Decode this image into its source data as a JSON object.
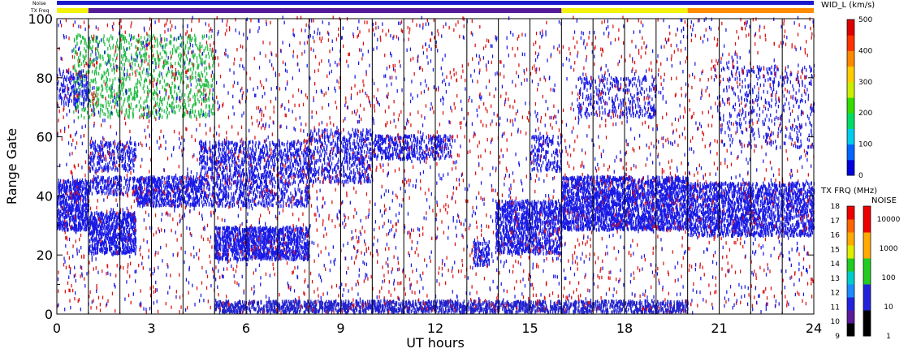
{
  "chart_data": {
    "type": "heatmap",
    "xlabel": "UT hours",
    "ylabel": "Range Gate",
    "xlim": [
      0,
      24
    ],
    "ylim": [
      0,
      100
    ],
    "xticks": [
      "0",
      "3",
      "6",
      "9",
      "12",
      "15",
      "18",
      "21",
      "24"
    ],
    "yticks": [
      "0",
      "20",
      "40",
      "60",
      "80",
      "100"
    ],
    "scan_boundaries_ut": [
      1,
      2,
      3,
      4,
      5,
      6,
      7,
      8,
      9,
      10,
      11,
      12,
      13,
      14,
      15,
      16,
      17,
      18,
      19,
      20,
      21,
      22,
      23
    ],
    "top_strips": {
      "noise_label": "Noise",
      "txfreq_label": "TX Freq",
      "noise_color": "#1a1acc",
      "txfreq_segments": [
        {
          "start": 0,
          "end": 1,
          "color": "#f2f20d"
        },
        {
          "start": 1,
          "end": 16,
          "color": "#551a99"
        },
        {
          "start": 16,
          "end": 20,
          "color": "#f2f20d"
        },
        {
          "start": 20,
          "end": 24,
          "color": "#ff8c00"
        }
      ]
    },
    "width_colorbar": {
      "title": "WID_L (km/s)",
      "range": [
        0,
        500
      ],
      "ticks": [
        "500",
        "400",
        "300",
        "200",
        "100",
        "0"
      ],
      "colors": [
        "#0000dd",
        "#0066ff",
        "#00ccee",
        "#00dd66",
        "#33dd00",
        "#ccee00",
        "#ffcc00",
        "#ff8800",
        "#ff3300",
        "#dd0000"
      ]
    },
    "txfreq_colorbar": {
      "title": "TX FRQ (MHz)",
      "ticks": [
        "18",
        "17",
        "16",
        "15",
        "14",
        "13",
        "12",
        "11",
        "10",
        "9"
      ],
      "colors": [
        "#000000",
        "#5a1a99",
        "#2222dd",
        "#1a8cff",
        "#00cccc",
        "#22cc22",
        "#ddee00",
        "#ffaa00",
        "#ff6600",
        "#ee0000"
      ]
    },
    "noise_colorbar": {
      "title": "NOISE",
      "ticks": [
        "10000",
        "1000",
        "100",
        "10",
        "1"
      ],
      "colors": [
        "#000000",
        "#2222dd",
        "#22cc22",
        "#ffaa00",
        "#ee0000"
      ]
    },
    "echo_regions": [
      {
        "t0": 0.0,
        "t1": 1.0,
        "g0": 28,
        "g1": 45,
        "density": 0.9,
        "color": "#1a1ae6"
      },
      {
        "t0": 1.0,
        "t1": 2.5,
        "g0": 20,
        "g1": 34,
        "density": 0.85,
        "color": "#1a1ae6"
      },
      {
        "t0": 1.0,
        "t1": 2.5,
        "g0": 40,
        "g1": 46,
        "density": 0.5,
        "color": "#1a1ae6"
      },
      {
        "t0": 2.5,
        "t1": 4.5,
        "g0": 36,
        "g1": 46,
        "density": 0.8,
        "color": "#1a1ae6"
      },
      {
        "t0": 1.0,
        "t1": 2.5,
        "g0": 48,
        "g1": 58,
        "density": 0.45,
        "color": "#1a1ae6"
      },
      {
        "t0": 0.5,
        "t1": 5.0,
        "g0": 66,
        "g1": 94,
        "density": 0.22,
        "color": "#22bb44"
      },
      {
        "t0": 0.0,
        "t1": 1.0,
        "g0": 70,
        "g1": 82,
        "density": 0.35,
        "color": "#1a1ae6"
      },
      {
        "t0": 4.5,
        "t1": 8.0,
        "g0": 36,
        "g1": 58,
        "density": 0.45,
        "color": "#1a1ae6"
      },
      {
        "t0": 5.0,
        "t1": 8.0,
        "g0": 18,
        "g1": 29,
        "density": 0.92,
        "color": "#1a1ae6"
      },
      {
        "t0": 8.0,
        "t1": 10.0,
        "g0": 44,
        "g1": 62,
        "density": 0.4,
        "color": "#1a1ae6"
      },
      {
        "t0": 10.0,
        "t1": 12.5,
        "g0": 52,
        "g1": 60,
        "density": 0.55,
        "color": "#1a1ae6"
      },
      {
        "t0": 5.0,
        "t1": 20.0,
        "g0": 0,
        "g1": 4,
        "density": 0.85,
        "color": "#2222cc"
      },
      {
        "t0": 13.2,
        "t1": 13.7,
        "g0": 16,
        "g1": 24,
        "density": 0.7,
        "color": "#1a1ae6"
      },
      {
        "t0": 13.9,
        "t1": 16.0,
        "g0": 20,
        "g1": 38,
        "density": 0.75,
        "color": "#1a1ae6"
      },
      {
        "t0": 15.0,
        "t1": 16.0,
        "g0": 48,
        "g1": 60,
        "density": 0.35,
        "color": "#1a1ae6"
      },
      {
        "t0": 16.0,
        "t1": 20.0,
        "g0": 28,
        "g1": 46,
        "density": 0.85,
        "color": "#1a1ae6"
      },
      {
        "t0": 16.5,
        "t1": 19.0,
        "g0": 66,
        "g1": 80,
        "density": 0.25,
        "color": "#1a1ae6"
      },
      {
        "t0": 20.0,
        "t1": 24.0,
        "g0": 26,
        "g1": 44,
        "density": 0.7,
        "color": "#1a1ae6"
      },
      {
        "t0": 21.0,
        "t1": 24.0,
        "g0": 56,
        "g1": 84,
        "density": 0.12,
        "color": "#1a1ae6"
      },
      {
        "t0": 0.0,
        "t1": 24.0,
        "g0": 0,
        "g1": 100,
        "density": 0.025,
        "color": "#dd1111"
      },
      {
        "t0": 0.0,
        "t1": 24.0,
        "g0": 0,
        "g1": 100,
        "density": 0.02,
        "color": "#1a1ae6"
      }
    ]
  }
}
